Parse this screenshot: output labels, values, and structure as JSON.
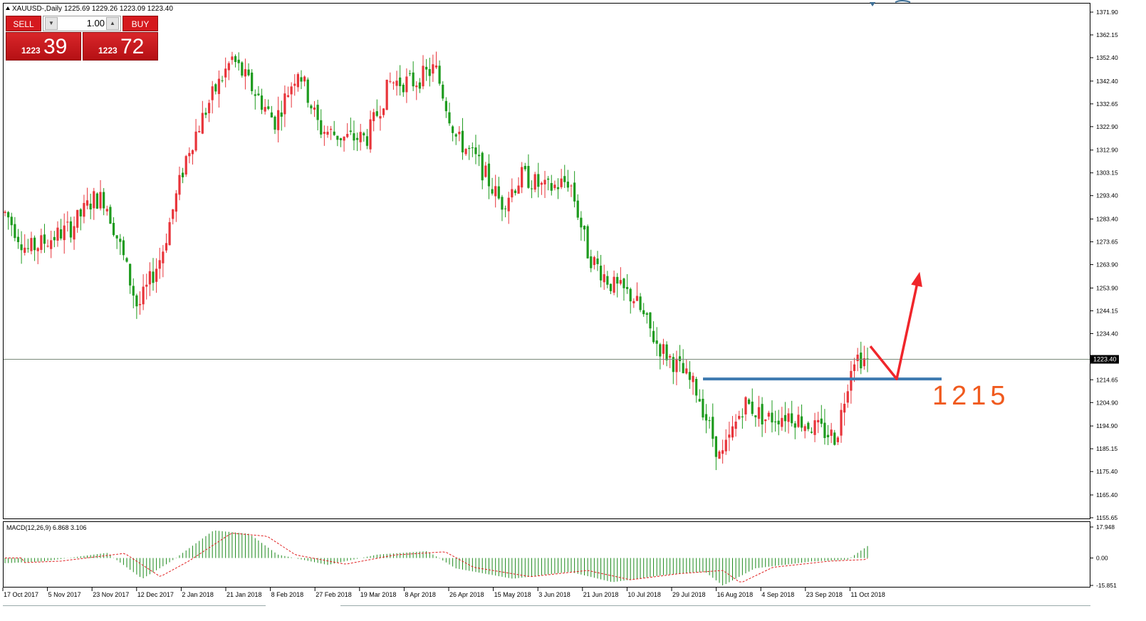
{
  "header": {
    "symbol_line": "XAUUSD-,Daily",
    "ohlc_line": "1225.69 1229.26 1223.09 1223.40"
  },
  "trade_panel": {
    "sell_label": "SELL",
    "buy_label": "BUY",
    "lot": "1.00",
    "sell_small": "1223",
    "sell_big": "39",
    "buy_small": "1223",
    "buy_big": "72"
  },
  "price_axis": {
    "ticks": [
      "1371.90",
      "1362.15",
      "1352.40",
      "1342.40",
      "1332.65",
      "1322.90",
      "1312.90",
      "1303.15",
      "1293.40",
      "1283.40",
      "1273.65",
      "1263.90",
      "1253.90",
      "1244.15",
      "1234.40",
      "1214.65",
      "1204.90",
      "1194.90",
      "1185.15",
      "1175.40",
      "1165.40",
      "1155.65"
    ],
    "current_price": "1223.40"
  },
  "annotation": {
    "level_text": "1215"
  },
  "macd": {
    "label": "MACD(12,26,9) 6.868 3.106",
    "ticks": [
      "17.948",
      "0.00",
      "-15.851"
    ]
  },
  "time_axis": {
    "labels": [
      "17 Oct 2017",
      "5 Nov 2017",
      "23 Nov 2017",
      "12 Dec 2017",
      "2 Jan 2018",
      "21 Jan 2018",
      "8 Feb 2018",
      "27 Feb 2018",
      "19 Mar 2018",
      "8 Apr 2018",
      "26 Apr 2018",
      "15 May 2018",
      "3 Jun 2018",
      "21 Jun 2018",
      "10 Jul 2018",
      "29 Jul 2018",
      "16 Aug 2018",
      "4 Sep 2018",
      "23 Sep 2018",
      "11 Oct 2018"
    ]
  },
  "colors": {
    "bull": "#e8343a",
    "bear": "#1e9b1e",
    "level_line": "#3d7ab0",
    "arrow": "#f0262b",
    "annotation_text": "#f05a1e"
  },
  "chart_data": {
    "type": "candlestick",
    "title": "XAUUSD-,Daily",
    "ylim": [
      1155.65,
      1371.9
    ],
    "price_path": [
      {
        "date": "17 Oct 2017",
        "close": 1286
      },
      {
        "date": "26 Oct 2017",
        "close": 1270
      },
      {
        "date": "5 Nov 2017",
        "close": 1275
      },
      {
        "date": "14 Nov 2017",
        "close": 1280
      },
      {
        "date": "23 Nov 2017",
        "close": 1292
      },
      {
        "date": "28 Nov 2017",
        "close": 1292
      },
      {
        "date": "5 Dec 2017",
        "close": 1270
      },
      {
        "date": "12 Dec 2017",
        "close": 1245
      },
      {
        "date": "22 Dec 2017",
        "close": 1268
      },
      {
        "date": "2 Jan 2018",
        "close": 1312
      },
      {
        "date": "12 Jan 2018",
        "close": 1335
      },
      {
        "date": "21 Jan 2018",
        "close": 1352
      },
      {
        "date": "8 Feb 2018",
        "close": 1325
      },
      {
        "date": "18 Feb 2018",
        "close": 1348
      },
      {
        "date": "27 Feb 2018",
        "close": 1322
      },
      {
        "date": "10 Mar 2018",
        "close": 1318
      },
      {
        "date": "19 Mar 2018",
        "close": 1318
      },
      {
        "date": "29 Mar 2018",
        "close": 1342
      },
      {
        "date": "8 Apr 2018",
        "close": 1342
      },
      {
        "date": "17 Apr 2018",
        "close": 1348
      },
      {
        "date": "26 Apr 2018",
        "close": 1318
      },
      {
        "date": "5 May 2018",
        "close": 1308
      },
      {
        "date": "15 May 2018",
        "close": 1290
      },
      {
        "date": "24 May 2018",
        "close": 1302
      },
      {
        "date": "3 Jun 2018",
        "close": 1296
      },
      {
        "date": "13 Jun 2018",
        "close": 1300
      },
      {
        "date": "21 Jun 2018",
        "close": 1268
      },
      {
        "date": "1 Jul 2018",
        "close": 1255
      },
      {
        "date": "10 Jul 2018",
        "close": 1250
      },
      {
        "date": "20 Jul 2018",
        "close": 1230
      },
      {
        "date": "29 Jul 2018",
        "close": 1220
      },
      {
        "date": "6 Aug 2018",
        "close": 1210
      },
      {
        "date": "16 Aug 2018",
        "close": 1180
      },
      {
        "date": "26 Aug 2018",
        "close": 1205
      },
      {
        "date": "4 Sep 2018",
        "close": 1198
      },
      {
        "date": "14 Sep 2018",
        "close": 1200
      },
      {
        "date": "23 Sep 2018",
        "close": 1195
      },
      {
        "date": "4 Oct 2018",
        "close": 1190
      },
      {
        "date": "11 Oct 2018",
        "close": 1225
      },
      {
        "date": "16 Oct 2018",
        "close": 1223.4
      }
    ],
    "annotations": [
      {
        "type": "horizontal_level",
        "value": 1215,
        "label": "1215"
      },
      {
        "type": "arrow_path",
        "points": [
          [
            1229,
            "11 Oct 2018"
          ],
          [
            1215,
            "19 Oct 2018"
          ],
          [
            1259,
            "24 Oct 2018"
          ]
        ]
      },
      {
        "type": "current_price_line",
        "value": 1223.4
      }
    ],
    "macd": {
      "fast": 12,
      "slow": 26,
      "signal": 9,
      "main": 6.868,
      "signal_value": 3.106,
      "ylim": [
        -15.851,
        17.948
      ]
    }
  }
}
